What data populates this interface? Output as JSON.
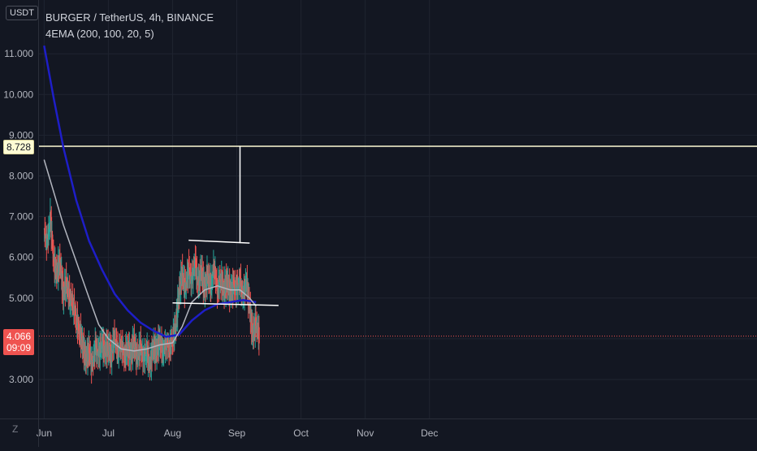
{
  "header": {
    "currency": "USDT",
    "symbol_line": "BURGER / TetherUS, 4h, BINANCE",
    "indicator_line": "4EMA (200, 100, 20, 5)"
  },
  "price_tags": {
    "level_value": "8.728",
    "last_value": "4.066",
    "countdown": "09:09"
  },
  "icons": {
    "zoom": "Z"
  },
  "colors": {
    "background": "#131722",
    "up": "#26a69a",
    "down": "#ef5350",
    "ema_long": "#1e1ec8",
    "ema_mid": "#b2b5be",
    "level_line": "#fffcd4",
    "drawing": "#ffffff"
  },
  "chart_data": {
    "type": "candlestick",
    "title": "BURGER / TetherUS, 4h, BINANCE",
    "ylim": [
      2.5,
      11.6
    ],
    "y_ticks": [
      "3.000",
      "4.000",
      "5.000",
      "6.000",
      "7.000",
      "8.000",
      "9.000",
      "10.000",
      "11.000"
    ],
    "y_tick_values": [
      3,
      4,
      5,
      6,
      7,
      8,
      9,
      10,
      11
    ],
    "x_ticks": [
      "Jun",
      "Jul",
      "Aug",
      "Sep",
      "Oct",
      "Nov",
      "Dec"
    ],
    "x_tick_month_index": [
      0,
      1,
      2,
      3,
      4,
      5,
      6
    ],
    "x_range_months": [
      -0.08,
      11.1
    ],
    "close_series_months": [
      [
        0.0,
        6.7
      ],
      [
        0.05,
        6.3
      ],
      [
        0.1,
        7.0
      ],
      [
        0.15,
        5.9
      ],
      [
        0.2,
        5.6
      ],
      [
        0.25,
        5.9
      ],
      [
        0.3,
        5.1
      ],
      [
        0.35,
        5.4
      ],
      [
        0.4,
        5.0
      ],
      [
        0.45,
        4.9
      ],
      [
        0.5,
        4.5
      ],
      [
        0.55,
        4.2
      ],
      [
        0.6,
        3.9
      ],
      [
        0.65,
        3.5
      ],
      [
        0.7,
        3.7
      ],
      [
        0.75,
        3.3
      ],
      [
        0.8,
        3.8
      ],
      [
        0.85,
        3.6
      ],
      [
        0.9,
        3.9
      ],
      [
        0.95,
        3.7
      ],
      [
        1.0,
        3.8
      ],
      [
        1.05,
        3.6
      ],
      [
        1.1,
        4.1
      ],
      [
        1.15,
        3.7
      ],
      [
        1.2,
        3.9
      ],
      [
        1.25,
        3.6
      ],
      [
        1.3,
        3.8
      ],
      [
        1.35,
        3.6
      ],
      [
        1.4,
        3.9
      ],
      [
        1.45,
        3.5
      ],
      [
        1.5,
        3.8
      ],
      [
        1.55,
        3.5
      ],
      [
        1.6,
        3.7
      ],
      [
        1.65,
        3.3
      ],
      [
        1.7,
        3.8
      ],
      [
        1.75,
        3.7
      ],
      [
        1.8,
        4.0
      ],
      [
        1.85,
        3.7
      ],
      [
        1.9,
        3.9
      ],
      [
        1.95,
        3.8
      ],
      [
        2.0,
        4.0
      ],
      [
        2.05,
        4.3
      ],
      [
        2.1,
        5.1
      ],
      [
        2.15,
        5.6
      ],
      [
        2.2,
        5.2
      ],
      [
        2.25,
        5.7
      ],
      [
        2.3,
        5.4
      ],
      [
        2.35,
        5.9
      ],
      [
        2.4,
        5.3
      ],
      [
        2.45,
        5.7
      ],
      [
        2.5,
        5.2
      ],
      [
        2.55,
        5.6
      ],
      [
        2.6,
        5.3
      ],
      [
        2.65,
        5.8
      ],
      [
        2.7,
        5.2
      ],
      [
        2.75,
        5.5
      ],
      [
        2.8,
        5.2
      ],
      [
        2.85,
        5.4
      ],
      [
        2.9,
        5.1
      ],
      [
        2.95,
        5.3
      ],
      [
        3.0,
        5.2
      ],
      [
        3.05,
        5.4
      ],
      [
        3.1,
        5.0
      ],
      [
        3.15,
        5.4
      ],
      [
        3.2,
        4.8
      ],
      [
        3.25,
        4.1
      ],
      [
        3.3,
        4.4
      ],
      [
        3.35,
        4.066
      ]
    ],
    "series": [
      {
        "name": "EMA 200",
        "color": "#1e1ec8",
        "points": [
          [
            0.0,
            11.2
          ],
          [
            0.15,
            9.9
          ],
          [
            0.3,
            8.7
          ],
          [
            0.5,
            7.4
          ],
          [
            0.7,
            6.4
          ],
          [
            0.9,
            5.7
          ],
          [
            1.1,
            5.1
          ],
          [
            1.3,
            4.7
          ],
          [
            1.5,
            4.4
          ],
          [
            1.7,
            4.2
          ],
          [
            1.9,
            4.05
          ],
          [
            2.1,
            4.1
          ],
          [
            2.3,
            4.45
          ],
          [
            2.5,
            4.7
          ],
          [
            2.7,
            4.85
          ],
          [
            2.9,
            4.9
          ],
          [
            3.1,
            4.95
          ],
          [
            3.3,
            4.9
          ]
        ]
      },
      {
        "name": "EMA 100",
        "color": "#b2b5be",
        "points": [
          [
            0.0,
            8.4
          ],
          [
            0.15,
            7.6
          ],
          [
            0.3,
            6.8
          ],
          [
            0.5,
            5.9
          ],
          [
            0.7,
            5.0
          ],
          [
            0.85,
            4.35
          ],
          [
            1.0,
            4.0
          ],
          [
            1.2,
            3.75
          ],
          [
            1.4,
            3.7
          ],
          [
            1.6,
            3.75
          ],
          [
            1.8,
            3.85
          ],
          [
            2.0,
            3.9
          ],
          [
            2.15,
            4.3
          ],
          [
            2.3,
            4.9
          ],
          [
            2.5,
            5.2
          ],
          [
            2.7,
            5.3
          ],
          [
            2.9,
            5.2
          ],
          [
            3.05,
            5.2
          ],
          [
            3.2,
            5.0
          ],
          [
            3.3,
            4.8
          ]
        ]
      }
    ],
    "horizontal_level": 8.728,
    "last_price": 4.066,
    "drawings": [
      {
        "from": [
          2.25,
          6.42
        ],
        "to": [
          3.2,
          6.35
        ]
      },
      {
        "from": [
          3.05,
          6.35
        ],
        "to": [
          3.05,
          8.728
        ]
      },
      {
        "from": [
          2.0,
          4.88
        ],
        "to": [
          3.65,
          4.82
        ]
      }
    ]
  }
}
